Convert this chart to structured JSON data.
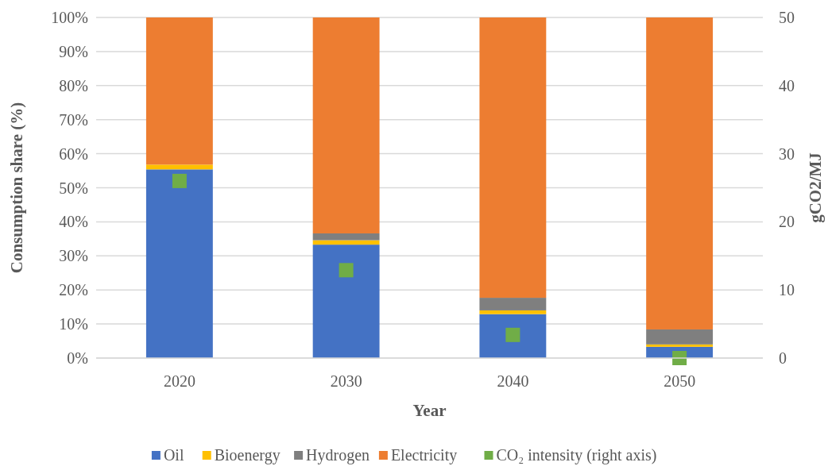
{
  "chart_data": {
    "type": "bar",
    "stacked": true,
    "categories": [
      "2020",
      "2030",
      "2040",
      "2050"
    ],
    "xlabel": "Year",
    "ylabel": "Consumption share (%)",
    "y2label": "gCO2/MJ",
    "ylim": [
      0,
      100
    ],
    "yticks": [
      {
        "value": 0,
        "label": "0%"
      },
      {
        "value": 10,
        "label": "10%"
      },
      {
        "value": 20,
        "label": "20%"
      },
      {
        "value": 30,
        "label": "30%"
      },
      {
        "value": 40,
        "label": "40%"
      },
      {
        "value": 50,
        "label": "50%"
      },
      {
        "value": 60,
        "label": "60%"
      },
      {
        "value": 70,
        "label": "70%"
      },
      {
        "value": 80,
        "label": "80%"
      },
      {
        "value": 90,
        "label": "90%"
      },
      {
        "value": 100,
        "label": "100%"
      }
    ],
    "y2lim": [
      0,
      50
    ],
    "y2ticks": [
      0,
      10,
      20,
      30,
      40,
      50
    ],
    "grid": "y",
    "legend": "bottom",
    "series": [
      {
        "name": "Oil",
        "color": "#4472c4",
        "values": [
          55.4,
          33.3,
          12.9,
          3.3
        ]
      },
      {
        "name": "Bioenergy",
        "color": "#ffc000",
        "values": [
          1.4,
          1.3,
          1.1,
          0.7
        ]
      },
      {
        "name": "Hydrogen",
        "color": "#7f7f7f",
        "values": [
          0,
          2.0,
          3.7,
          4.4
        ]
      },
      {
        "name": "Electricity",
        "color": "#ed7d31",
        "values": [
          43.2,
          63.4,
          82.3,
          91.6
        ]
      },
      {
        "name": "CO₂ intensity (right axis)",
        "type": "scatter",
        "axis": "y2",
        "marker": "square",
        "color": "#70ad47",
        "values": [
          26.0,
          12.9,
          3.4,
          0
        ]
      }
    ]
  }
}
